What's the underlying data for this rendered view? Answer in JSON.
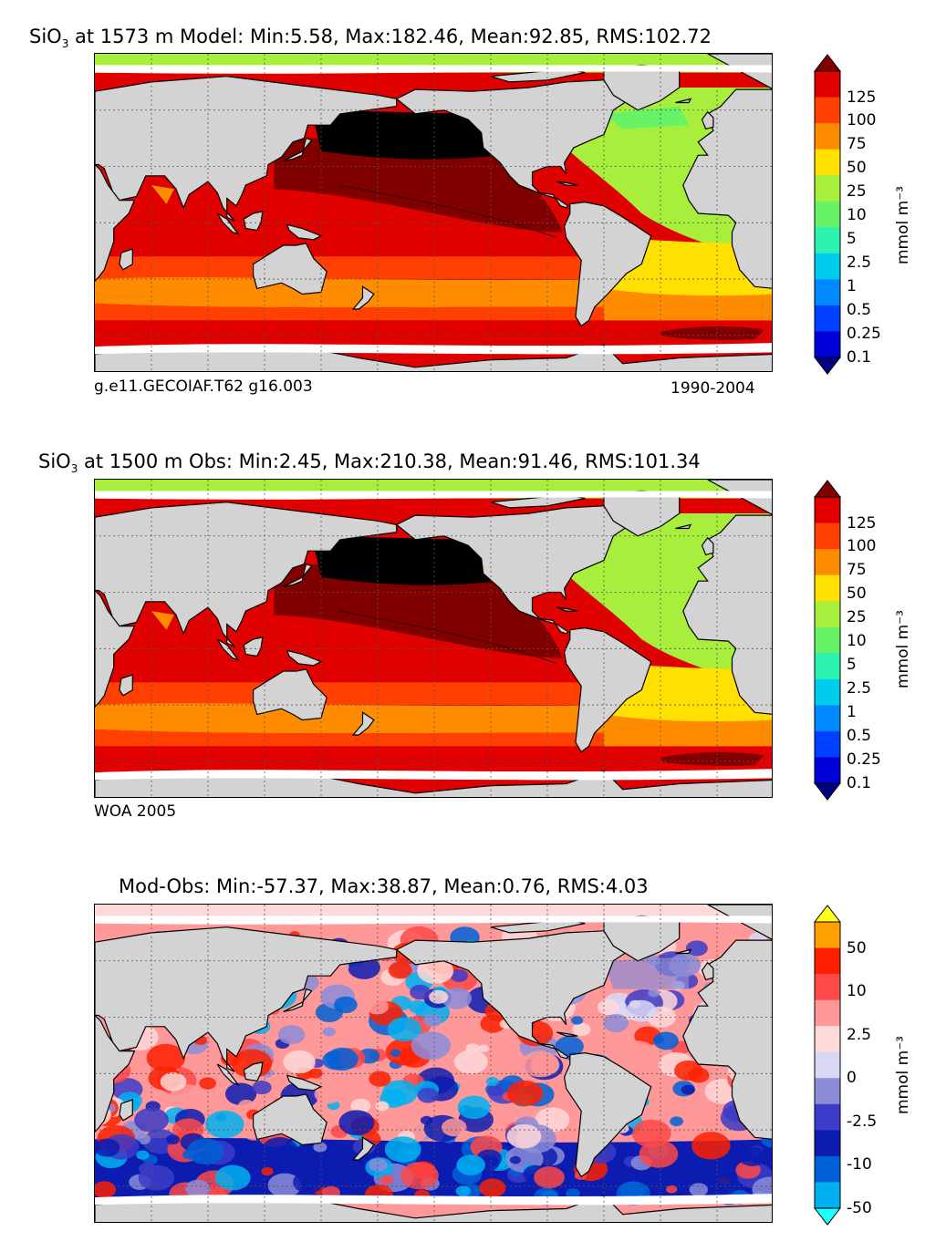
{
  "panels": [
    {
      "title_pre": "SiO",
      "title_sub": "3",
      "title_post": " at 1573 m Model: Min:5.58, Max:182.46, Mean:92.85, RMS:102.72",
      "note_left": "g.e11.GECOIAF.T62 g16.003",
      "note_right": "1990-2004",
      "colorbar": {
        "labels": [
          "125",
          "100",
          "75",
          "50",
          "25",
          "10",
          "5",
          "2.5",
          "1",
          "0.5",
          "0.25",
          "0.1"
        ],
        "colors": [
          "#800000",
          "#e00000",
          "#ff4000",
          "#ff8c00",
          "#ffe000",
          "#a8ee3c",
          "#66f466",
          "#2ef2b0",
          "#00ccee",
          "#0088ff",
          "#0040ff",
          "#0000d8",
          "#000080"
        ],
        "unit": "mmol m⁻³"
      }
    },
    {
      "title_pre": "SiO",
      "title_sub": "3",
      "title_post": " at 1500 m Obs: Min:2.45, Max:210.38, Mean:91.46, RMS:101.34",
      "note_left": "WOA 2005",
      "note_right": "",
      "colorbar": {
        "labels": [
          "125",
          "100",
          "75",
          "50",
          "25",
          "10",
          "5",
          "2.5",
          "1",
          "0.5",
          "0.25",
          "0.1"
        ],
        "colors": [
          "#800000",
          "#e00000",
          "#ff4000",
          "#ff8c00",
          "#ffe000",
          "#a8ee3c",
          "#66f466",
          "#2ef2b0",
          "#00ccee",
          "#0088ff",
          "#0040ff",
          "#0000d8",
          "#000080"
        ],
        "unit": "mmol m⁻³"
      }
    },
    {
      "title_pre": "",
      "title_sub": "",
      "title_post": "Mod-Obs: Min:-57.37, Max:38.87, Mean:0.76, RMS:4.03",
      "note_left": "",
      "note_right": "",
      "colorbar": {
        "labels": [
          "50",
          "10",
          "2.5",
          "0",
          "-2.5",
          "-10",
          "-50"
        ],
        "colors": [
          "#ffff20",
          "#ffa000",
          "#ff2000",
          "#ff4848",
          "#ff9898",
          "#ffd8d8",
          "#d8d8f4",
          "#8c8cd8",
          "#3c3cc8",
          "#0c1cb0",
          "#0060d8",
          "#00b0f0",
          "#20ffff"
        ],
        "unit": "mmol m⁻³"
      }
    }
  ],
  "map_colors": {
    "land": "#d3d3d3",
    "missing": "#ffffff",
    "grid": "#555555",
    "coast": "#000000",
    "black_pacific": "#000000"
  }
}
